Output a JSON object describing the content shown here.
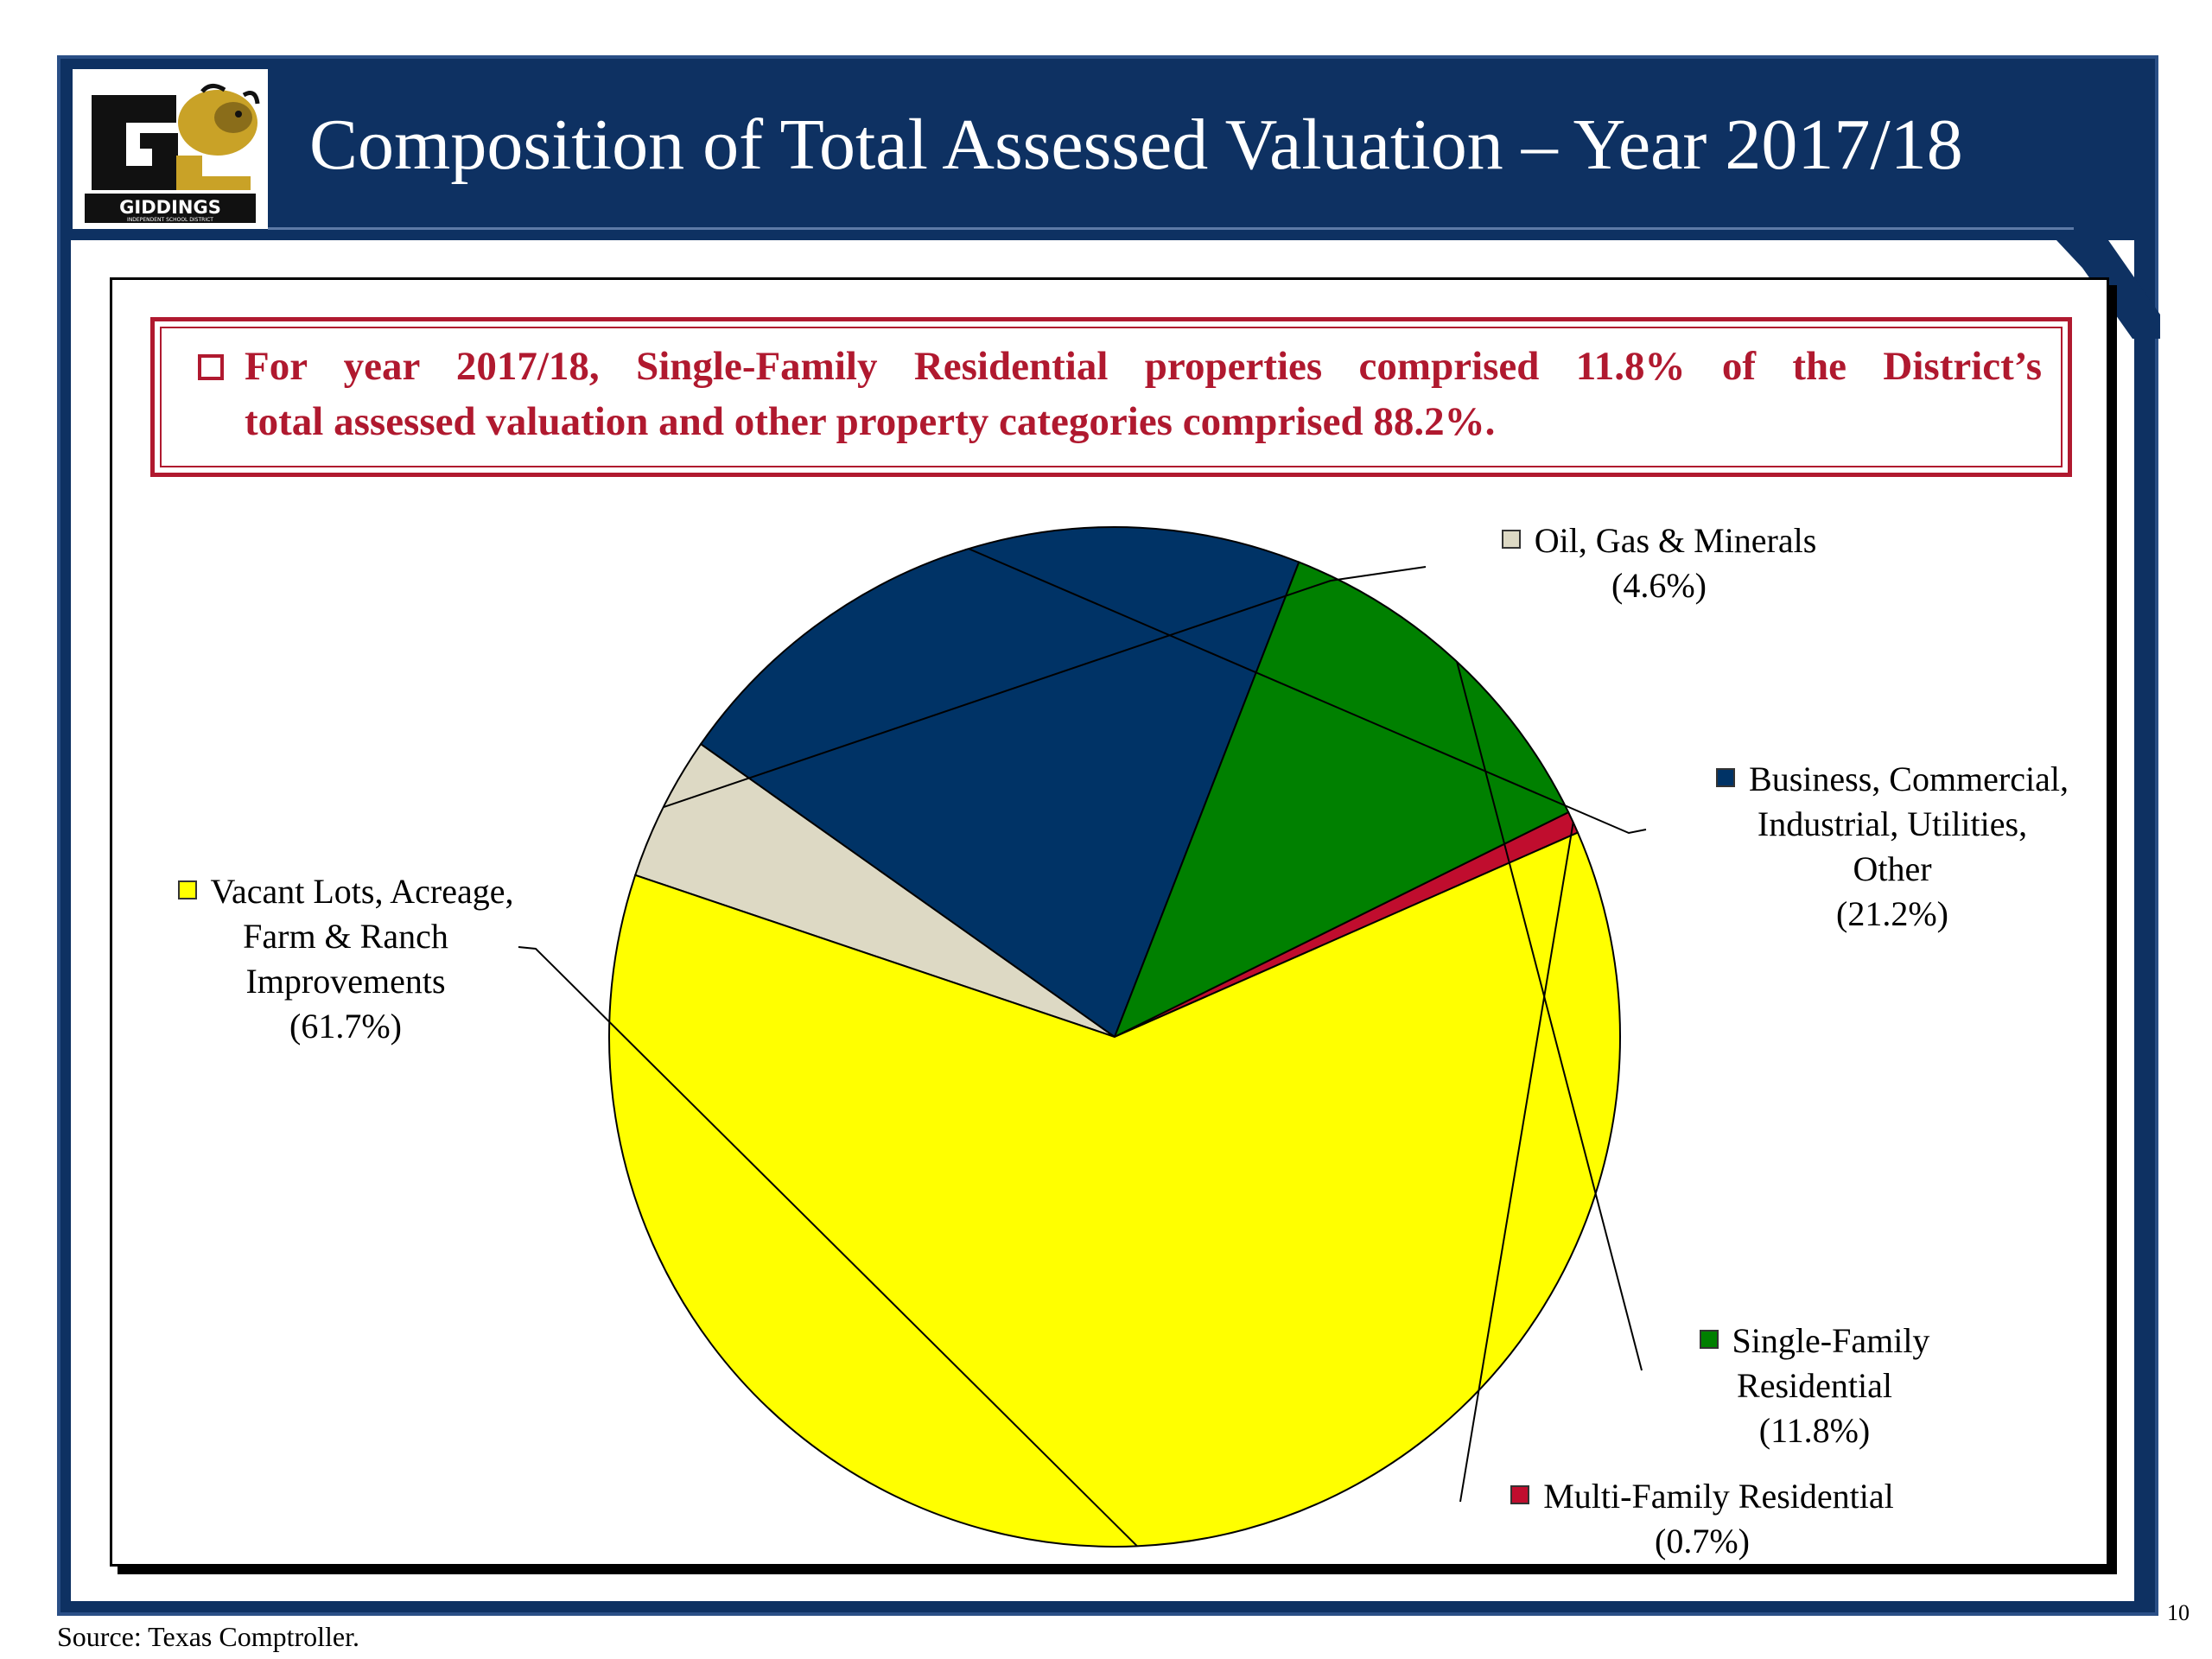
{
  "slide": {
    "title": "Composition of Total Assessed Valuation – Year 2017/18",
    "logo_text": "GIDDINGS",
    "logo_subtext": "INDEPENDENT SCHOOL DISTRICT",
    "callout_line1": "For year 2017/18, Single-Family Residential properties comprised 11.8% of the District’s",
    "callout_line2": "total assessed valuation and other property categories comprised 88.2%.",
    "source": "Source: Texas Comptroller.",
    "page_number": "10"
  },
  "colors": {
    "header_navy": "#0e3162",
    "callout_red": "#b0192f",
    "oil_gas": "#ddd9c4",
    "business": "#003366",
    "single_family": "#008000",
    "multi_family": "#c00d2e",
    "vacant_lots": "#ffff00"
  },
  "chart_data": {
    "type": "pie",
    "slices": [
      {
        "key": "oil",
        "name_lines": [
          "Oil, Gas & Minerals"
        ],
        "pct_label": "(4.6%)",
        "value": 4.6,
        "color": "#ddd9c4"
      },
      {
        "key": "business",
        "name_lines": [
          "Business, Commercial,",
          "Industrial, Utilities,",
          "Other"
        ],
        "pct_label": "(21.2%)",
        "value": 21.2,
        "color": "#003366"
      },
      {
        "key": "single",
        "name_lines": [
          "Single-Family",
          "Residential"
        ],
        "pct_label": "(11.8%)",
        "value": 11.8,
        "color": "#008000"
      },
      {
        "key": "multi",
        "name_lines": [
          "Multi-Family Residential"
        ],
        "pct_label": "(0.7%)",
        "value": 0.7,
        "color": "#c00d2e"
      },
      {
        "key": "vacant",
        "name_lines": [
          "Vacant Lots, Acreage,",
          "Farm & Ranch",
          "Improvements"
        ],
        "pct_label": "(61.7%)",
        "value": 61.7,
        "color": "#ffff00"
      }
    ]
  }
}
